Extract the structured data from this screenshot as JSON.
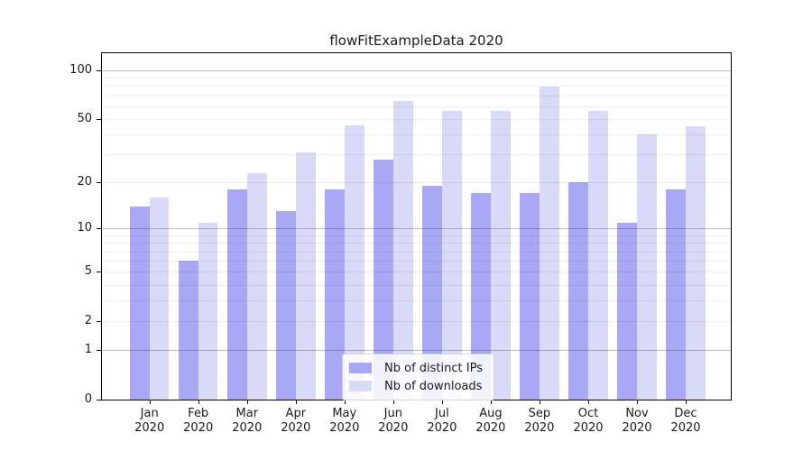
{
  "title": "flowFitExampleData 2020",
  "colors": {
    "bar_ips": "#a8a8f5",
    "bar_downloads": "#d9d9f8",
    "spine": "#000000",
    "grid_major": "rgba(40,40,45,0.30)",
    "grid_sub": "rgba(60,60,70,0.11)",
    "grid_minor": "rgba(60,60,70,0.075)",
    "text": "#1a1a1a",
    "legend_border": "#d5d5d5",
    "legend_bg": "rgba(255,255,255,0.85)"
  },
  "legend": {
    "items": [
      {
        "label": "Nb of distinct IPs",
        "color_key": "bar_ips"
      },
      {
        "label": "Nb of downloads",
        "color_key": "bar_downloads"
      }
    ]
  },
  "y_axis": {
    "tick_display_order": [
      100,
      50,
      20,
      10,
      5,
      2,
      1,
      0
    ],
    "major_gridlines": [
      1,
      10,
      100
    ],
    "sub_gridlines": [
      2,
      5,
      20,
      50
    ],
    "minor_gridlines": [
      3,
      4,
      6,
      7,
      8,
      9,
      30,
      40,
      60,
      70,
      80,
      90
    ]
  },
  "chart_data": {
    "type": "bar",
    "title": "flowFitExampleData 2020",
    "xlabel": "",
    "ylabel": "",
    "categories": [
      "Jan 2020",
      "Feb 2020",
      "Mar 2020",
      "Apr 2020",
      "May 2020",
      "Jun 2020",
      "Jul 2020",
      "Aug 2020",
      "Sep 2020",
      "Oct 2020",
      "Nov 2020",
      "Dec 2020"
    ],
    "series": [
      {
        "name": "Nb of distinct IPs",
        "values": [
          14,
          6,
          18,
          13,
          18,
          28,
          19,
          17,
          17,
          20,
          11,
          18
        ]
      },
      {
        "name": "Nb of downloads",
        "values": [
          16,
          11,
          23,
          31,
          46,
          65,
          56,
          56,
          79,
          56,
          40,
          45
        ]
      }
    ],
    "yscale": "log1p",
    "ylim": [
      0,
      127
    ],
    "yticks": [
      0,
      1,
      2,
      5,
      10,
      20,
      50,
      100
    ],
    "grid": true,
    "legend_position": "lower center"
  }
}
